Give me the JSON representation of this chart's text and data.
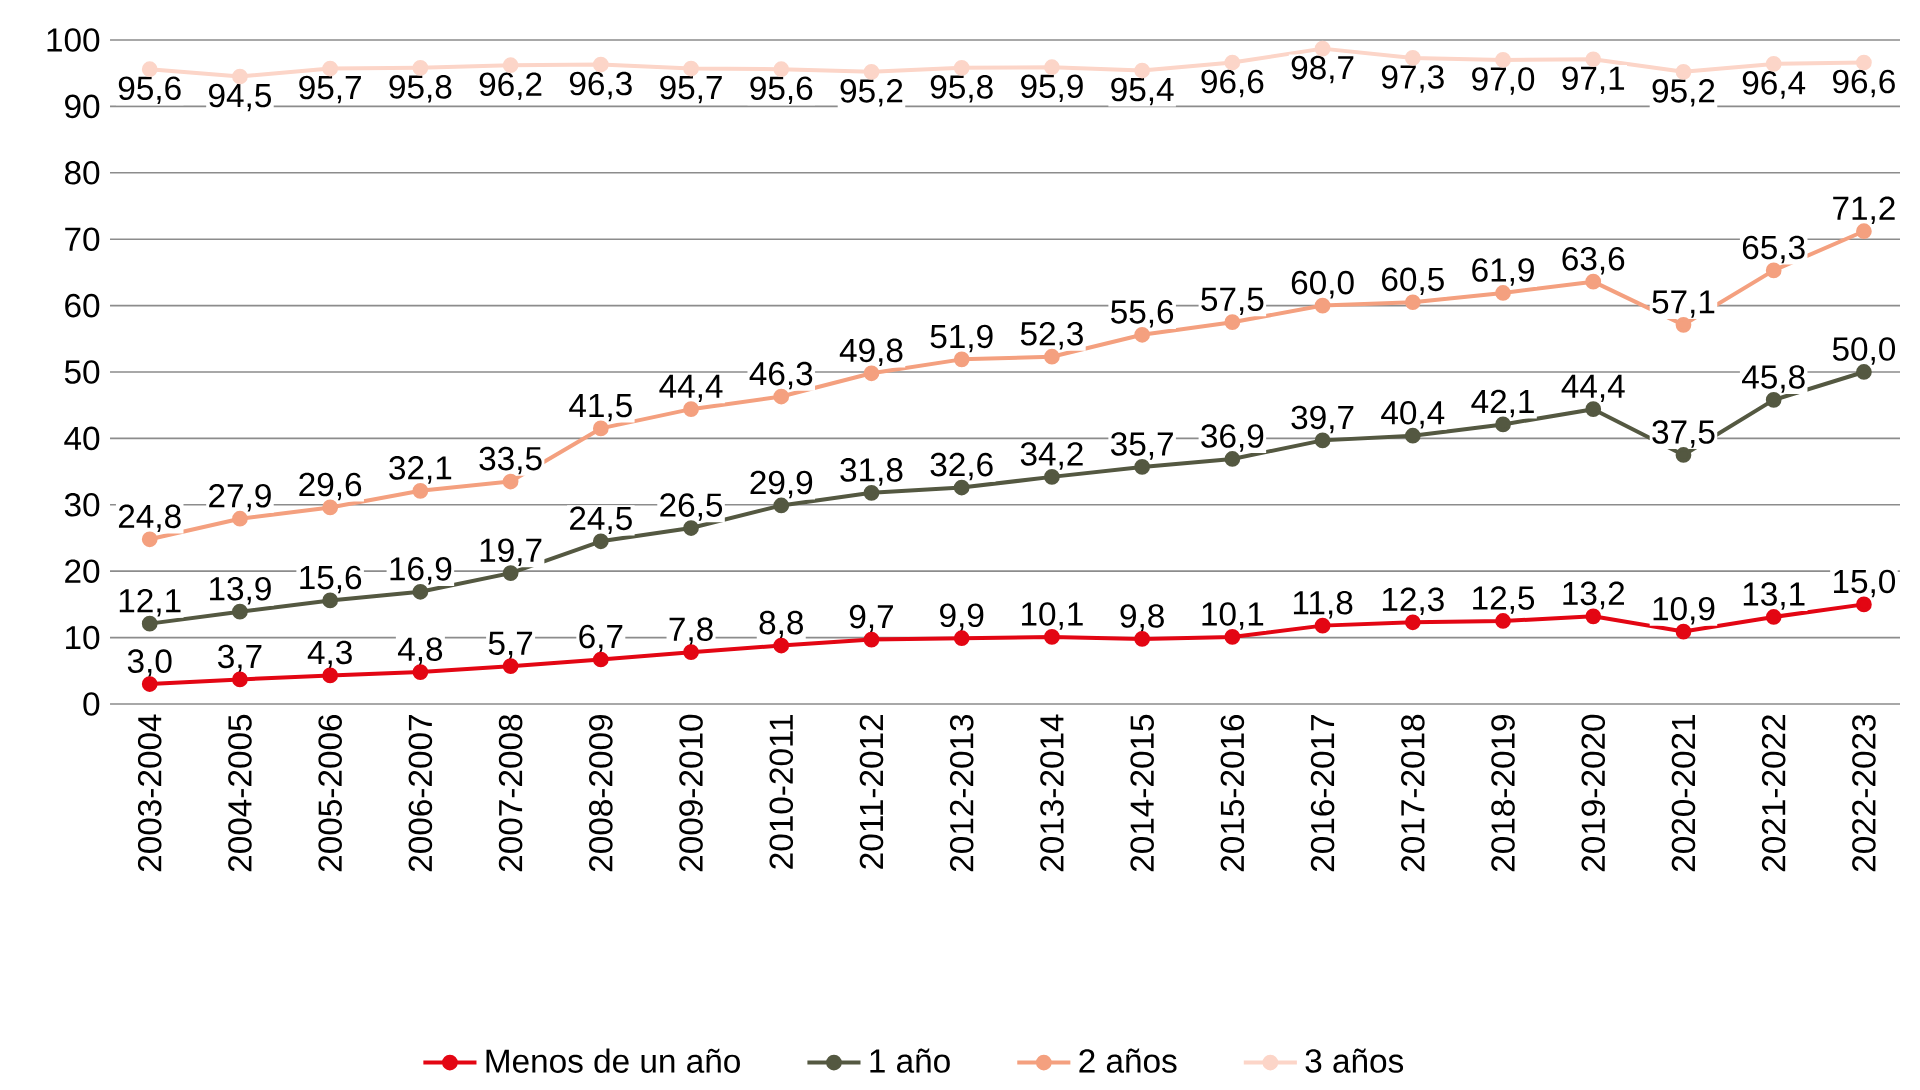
{
  "chart_data": {
    "type": "line",
    "marker": "circle",
    "grid": "y",
    "legend": "bottom",
    "ylim": [
      0,
      100
    ],
    "yticks": [
      0,
      10,
      20,
      30,
      40,
      50,
      60,
      70,
      80,
      90,
      100
    ],
    "categories": [
      "2003-2004",
      "2004-2005",
      "2005-2006",
      "2006-2007",
      "2007-2008",
      "2008-2009",
      "2009-2010",
      "2010-2011",
      "2011-2012",
      "2012-2013",
      "2013-2014",
      "2014-2015",
      "2015-2016",
      "2016-2017",
      "2017-2018",
      "2018-2019",
      "2019-2020",
      "2020-2021",
      "2021-2022",
      "2022-2023"
    ],
    "series": [
      {
        "name": "Menos de un año",
        "color": "#e30613",
        "values": [
          3.0,
          3.7,
          4.3,
          4.8,
          5.7,
          6.7,
          7.8,
          8.8,
          9.7,
          9.9,
          10.1,
          9.8,
          10.1,
          11.8,
          12.3,
          12.5,
          13.2,
          10.9,
          13.1,
          15.0
        ],
        "value_labels": [
          "3,0",
          "3,7",
          "4,3",
          "4,8",
          "5,7",
          "6,7",
          "7,8",
          "8,8",
          "9,7",
          "9,9",
          "10,1",
          "9,8",
          "10,1",
          "11,8",
          "12,3",
          "12,5",
          "13,2",
          "10,9",
          "13,1",
          "15,0"
        ]
      },
      {
        "name": "1 año",
        "color": "#545841",
        "values": [
          12.1,
          13.9,
          15.6,
          16.9,
          19.7,
          24.5,
          26.5,
          29.9,
          31.8,
          32.6,
          34.2,
          35.7,
          36.9,
          39.7,
          40.4,
          42.1,
          44.4,
          37.5,
          45.8,
          50.0
        ],
        "value_labels": [
          "12,1",
          "13,9",
          "15,6",
          "16,9",
          "19,7",
          "24,5",
          "26,5",
          "29,9",
          "31,8",
          "32,6",
          "34,2",
          "35,7",
          "36,9",
          "39,7",
          "40,4",
          "42,1",
          "44,4",
          "37,5",
          "45,8",
          "50,0"
        ]
      },
      {
        "name": "2 años",
        "color": "#f4a07f",
        "values": [
          24.8,
          27.9,
          29.6,
          32.1,
          33.5,
          41.5,
          44.4,
          46.3,
          49.8,
          51.9,
          52.3,
          55.6,
          57.5,
          60.0,
          60.5,
          61.9,
          63.6,
          57.1,
          65.3,
          71.2
        ],
        "value_labels": [
          "24,8",
          "27,9",
          "29,6",
          "32,1",
          "33,5",
          "41,5",
          "44,4",
          "46,3",
          "49,8",
          "51,9",
          "52,3",
          "55,6",
          "57,5",
          "60,0",
          "60,5",
          "61,9",
          "63,6",
          "57,1",
          "65,3",
          "71,2"
        ]
      },
      {
        "name": "3 años",
        "color": "#fcd5c8",
        "values": [
          95.6,
          94.5,
          95.7,
          95.8,
          96.2,
          96.3,
          95.7,
          95.6,
          95.2,
          95.8,
          95.9,
          95.4,
          96.6,
          98.7,
          97.3,
          97.0,
          97.1,
          95.2,
          96.4,
          96.6
        ],
        "value_labels": [
          "95,6",
          "94,5",
          "95,7",
          "95,8",
          "96,2",
          "96,3",
          "95,7",
          "95,6",
          "95,2",
          "95,8",
          "95,9",
          "95,4",
          "96,6",
          "98,7",
          "97,3",
          "97,0",
          "97,1",
          "95,2",
          "96,4",
          "96,6"
        ]
      }
    ]
  }
}
